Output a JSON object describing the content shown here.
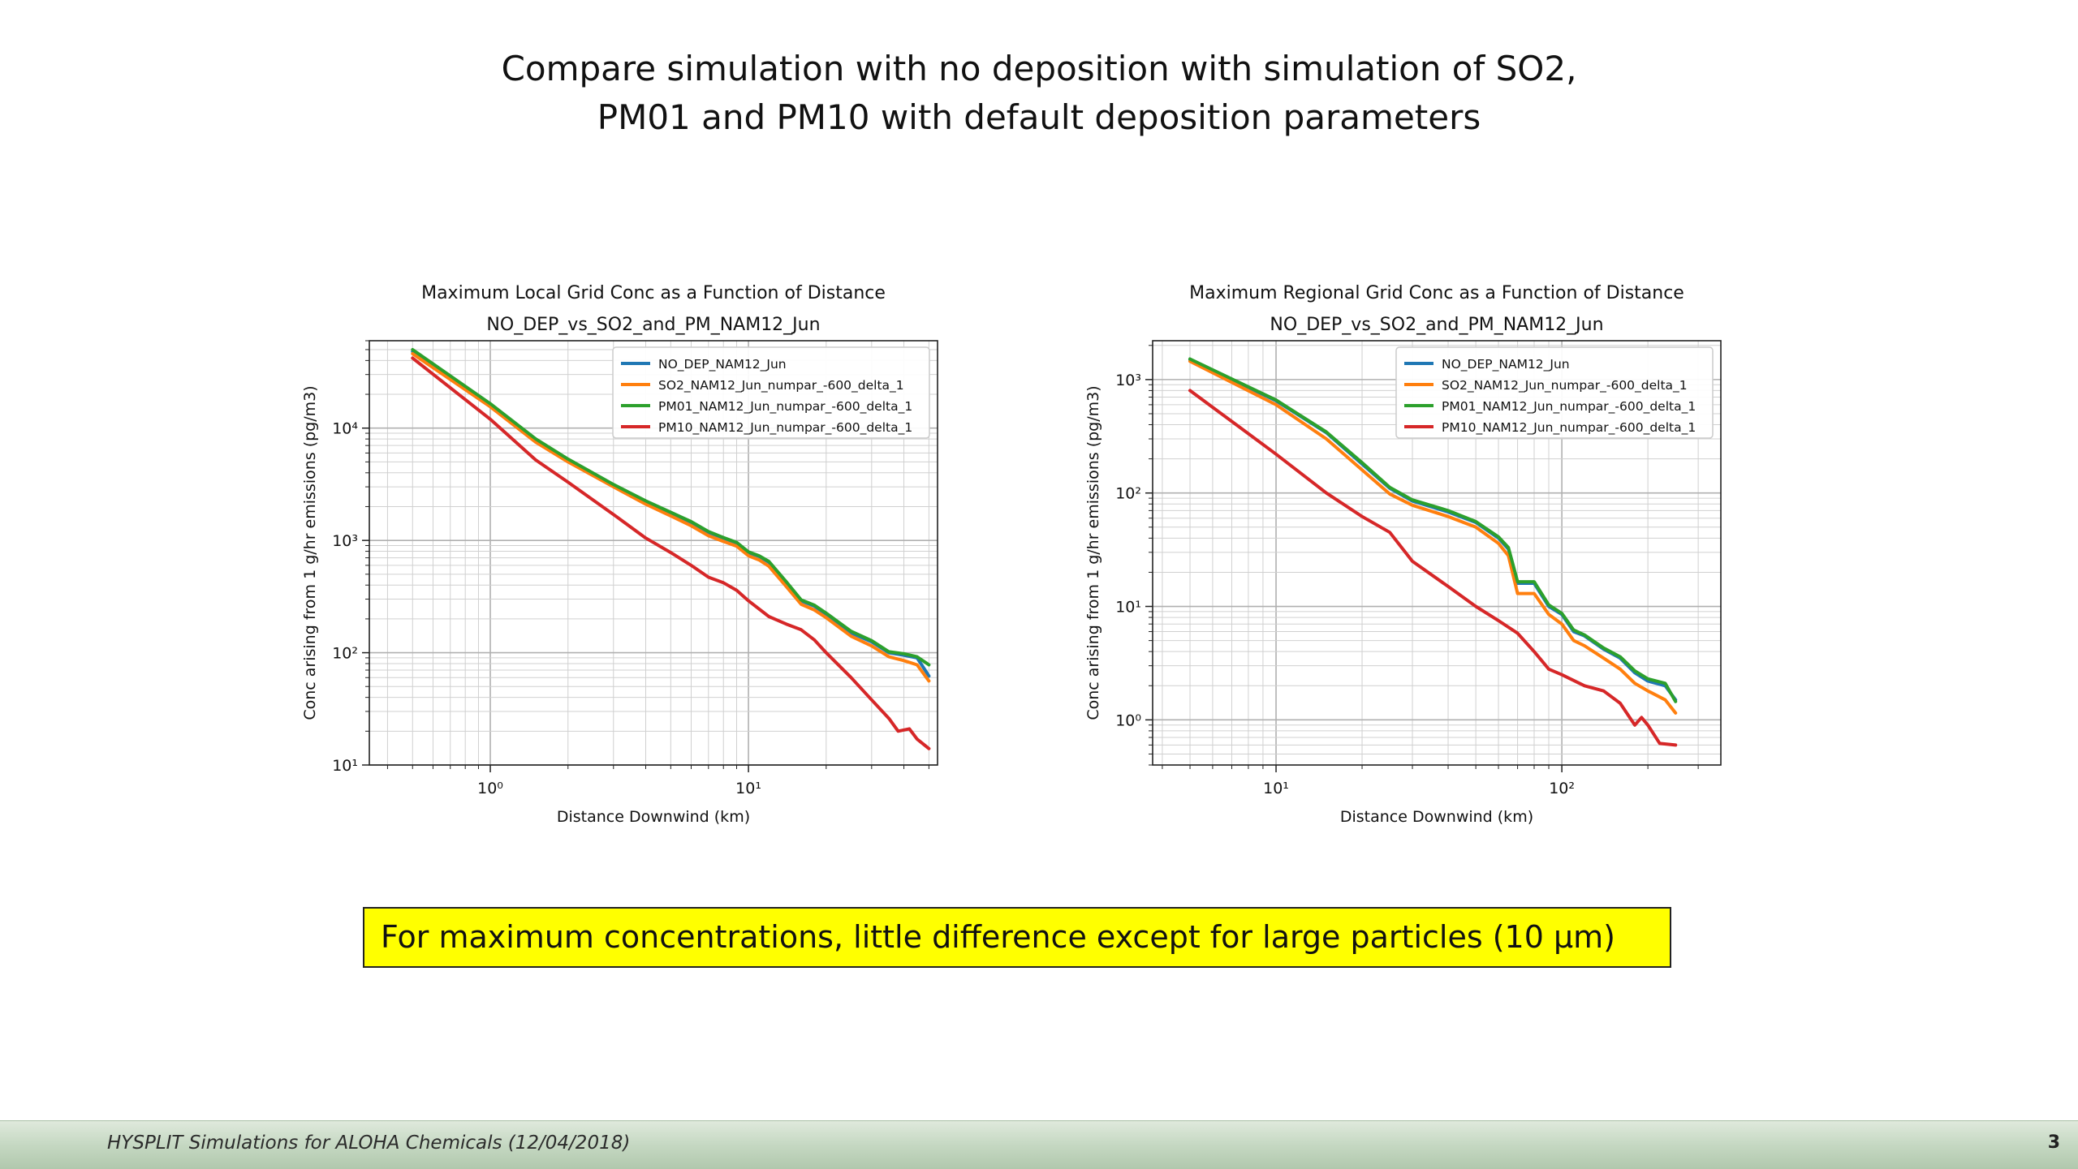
{
  "slide": {
    "title_line1": "Compare simulation with no deposition with simulation of SO2,",
    "title_line2": "PM01 and PM10 with default deposition parameters",
    "callout": "For maximum concentrations, little difference except for large particles (10 µm)",
    "footer": "HYSPLIT Simulations for ALOHA Chemicals (12/04/2018)",
    "page_number": "3"
  },
  "chart_data": [
    {
      "type": "line",
      "title": "Maximum Local Grid Conc as a Function of Distance",
      "subtitle": "NO_DEP_vs_SO2_and_PM_NAM12_Jun",
      "xlabel": "Distance Downwind (km)",
      "ylabel": "Conc arising from 1 g/hr emissions (pg/m3)",
      "xscale": "log",
      "yscale": "log",
      "xlim": [
        0.34,
        54
      ],
      "ylim": [
        10,
        60000
      ],
      "xticks": [
        {
          "value": 1,
          "label": "10⁰"
        },
        {
          "value": 10,
          "label": "10¹"
        }
      ],
      "yticks": [
        {
          "value": 10,
          "label": "10¹"
        },
        {
          "value": 100,
          "label": "10²"
        },
        {
          "value": 1000,
          "label": "10³"
        },
        {
          "value": 10000,
          "label": "10⁴"
        }
      ],
      "grid": true,
      "legend_position": "top-right",
      "series": [
        {
          "name": "NO_DEP_NAM12_Jun",
          "color": "#1f77b4",
          "x": [
            0.5,
            1,
            1.5,
            2,
            3,
            4,
            5,
            6,
            7,
            8,
            9,
            10,
            11,
            12,
            14,
            16,
            18,
            20,
            25,
            30,
            35,
            40,
            45,
            50
          ],
          "y": [
            48000,
            16000,
            7800,
            5200,
            3100,
            2200,
            1750,
            1450,
            1180,
            1050,
            950,
            780,
            720,
            640,
            420,
            290,
            260,
            220,
            150,
            125,
            100,
            95,
            90,
            62
          ]
        },
        {
          "name": "SO2_NAM12_Jun_numpar_-600_delta_1",
          "color": "#ff7f0e",
          "x": [
            0.5,
            1,
            1.5,
            2,
            3,
            4,
            5,
            6,
            7,
            8,
            9,
            10,
            11,
            12,
            14,
            16,
            18,
            20,
            25,
            30,
            35,
            40,
            45,
            50
          ],
          "y": [
            46000,
            15500,
            7500,
            5000,
            3000,
            2100,
            1650,
            1350,
            1100,
            980,
            890,
            730,
            670,
            590,
            390,
            270,
            240,
            205,
            140,
            115,
            92,
            85,
            78,
            56
          ]
        },
        {
          "name": "PM01_NAM12_Jun_numpar_-600_delta_1",
          "color": "#2ca02c",
          "x": [
            0.5,
            1,
            1.5,
            2,
            3,
            4,
            5,
            6,
            7,
            8,
            9,
            10,
            11,
            12,
            14,
            16,
            18,
            20,
            25,
            30,
            35,
            40,
            45,
            50
          ],
          "y": [
            50000,
            16500,
            8000,
            5300,
            3150,
            2250,
            1780,
            1470,
            1200,
            1060,
            960,
            790,
            730,
            650,
            430,
            295,
            265,
            225,
            155,
            128,
            102,
            98,
            92,
            78
          ]
        },
        {
          "name": "PM10_NAM12_Jun_numpar_-600_delta_1",
          "color": "#d62728",
          "x": [
            0.5,
            1,
            1.5,
            2,
            3,
            4,
            5,
            6,
            7,
            8,
            9,
            10,
            12,
            14,
            16,
            18,
            20,
            25,
            30,
            35,
            38,
            42,
            45,
            50
          ],
          "y": [
            42000,
            12000,
            5200,
            3300,
            1700,
            1050,
            780,
            600,
            470,
            420,
            360,
            290,
            210,
            180,
            160,
            130,
            100,
            60,
            38,
            26,
            20,
            21,
            17,
            14
          ]
        }
      ]
    },
    {
      "type": "line",
      "title": "Maximum Regional Grid Conc as a Function of Distance",
      "subtitle": "NO_DEP_vs_SO2_and_PM_NAM12_Jun",
      "xlabel": "Distance Downwind (km)",
      "ylabel": "Conc arising from 1 g/hr emissions (pg/m3)",
      "xscale": "log",
      "yscale": "log",
      "xlim": [
        3.7,
        360
      ],
      "ylim": [
        0.4,
        2200
      ],
      "xticks": [
        {
          "value": 10,
          "label": "10¹"
        },
        {
          "value": 100,
          "label": "10²"
        }
      ],
      "yticks": [
        {
          "value": 1,
          "label": "10⁰"
        },
        {
          "value": 10,
          "label": "10¹"
        },
        {
          "value": 100,
          "label": "10²"
        },
        {
          "value": 1000,
          "label": "10³"
        }
      ],
      "grid": true,
      "legend_position": "top-right",
      "series": [
        {
          "name": "NO_DEP_NAM12_Jun",
          "color": "#1f77b4",
          "x": [
            5,
            10,
            15,
            20,
            25,
            30,
            40,
            50,
            60,
            65,
            70,
            80,
            90,
            100,
            110,
            120,
            140,
            160,
            180,
            200,
            230,
            250
          ],
          "y": [
            1500,
            650,
            340,
            180,
            110,
            85,
            68,
            55,
            40,
            32,
            16,
            16,
            10,
            8.5,
            6,
            5.5,
            4.2,
            3.5,
            2.6,
            2.2,
            2,
            1.5
          ]
        },
        {
          "name": "SO2_NAM12_Jun_numpar_-600_delta_1",
          "color": "#ff7f0e",
          "x": [
            5,
            10,
            15,
            20,
            25,
            30,
            40,
            50,
            60,
            65,
            70,
            80,
            90,
            100,
            110,
            120,
            140,
            160,
            180,
            200,
            230,
            250
          ],
          "y": [
            1450,
            600,
            300,
            160,
            98,
            78,
            62,
            50,
            36,
            28,
            13,
            13,
            8.5,
            7,
            5,
            4.5,
            3.5,
            2.8,
            2.1,
            1.8,
            1.5,
            1.15
          ]
        },
        {
          "name": "PM01_NAM12_Jun_numpar_-600_delta_1",
          "color": "#2ca02c",
          "x": [
            5,
            10,
            15,
            20,
            25,
            30,
            40,
            50,
            60,
            65,
            70,
            80,
            90,
            100,
            110,
            120,
            140,
            160,
            180,
            200,
            230,
            250
          ],
          "y": [
            1520,
            660,
            345,
            185,
            112,
            87,
            70,
            56,
            41,
            33,
            16.5,
            16.5,
            10.3,
            8.7,
            6.2,
            5.6,
            4.3,
            3.6,
            2.7,
            2.3,
            2.1,
            1.45
          ]
        },
        {
          "name": "PM10_NAM12_Jun_numpar_-600_delta_1",
          "color": "#d62728",
          "x": [
            5,
            10,
            15,
            20,
            25,
            30,
            40,
            50,
            60,
            70,
            80,
            90,
            100,
            120,
            140,
            160,
            180,
            190,
            200,
            220,
            250
          ],
          "y": [
            800,
            220,
            100,
            62,
            45,
            25,
            15,
            10,
            7.5,
            5.8,
            4,
            2.8,
            2.5,
            2,
            1.8,
            1.4,
            0.9,
            1.05,
            0.9,
            0.62,
            0.6
          ]
        }
      ]
    }
  ]
}
